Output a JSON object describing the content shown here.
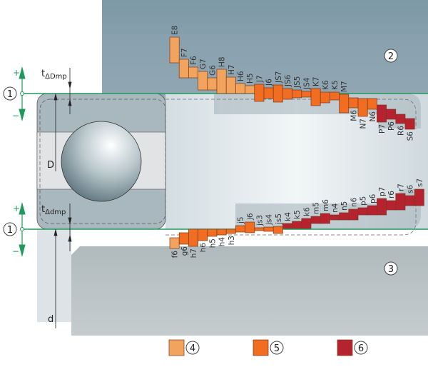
{
  "colors": {
    "class4": "#f2a45e",
    "class5": "#f06d22",
    "class6": "#b6222f",
    "zero_line": "#1f9a5a"
  },
  "markers": {
    "one": "1",
    "two": "2",
    "three": "3",
    "plus": "+",
    "minus": "−"
  },
  "dimensions": {
    "t_outer": "t",
    "t_outer_sub": "ΔDmp",
    "t_inner": "t",
    "t_inner_sub": "Δdmp",
    "D": "D",
    "d": "d"
  },
  "legend": [
    {
      "class": "class4",
      "label": "4"
    },
    {
      "class": "class5",
      "label": "5"
    },
    {
      "class": "class6",
      "label": "6"
    }
  ],
  "housing_tolerances": [
    {
      "name": "E8",
      "upper": 79,
      "lower": 43,
      "class": "class4"
    },
    {
      "name": "F7",
      "upper": 48,
      "lower": 22,
      "class": "class4"
    },
    {
      "name": "F6",
      "upper": 37,
      "lower": 22,
      "class": "class4"
    },
    {
      "name": "G7",
      "upper": 31,
      "lower": 5,
      "class": "class4"
    },
    {
      "name": "G6",
      "upper": 22,
      "lower": 5,
      "class": "class4"
    },
    {
      "name": "H8",
      "upper": 34,
      "lower": 0,
      "class": "class4"
    },
    {
      "name": "H7",
      "upper": 23,
      "lower": 0,
      "class": "class4"
    },
    {
      "name": "H6",
      "upper": 14,
      "lower": 0,
      "class": "class4"
    },
    {
      "name": "H5",
      "upper": 11,
      "lower": 0,
      "class": "class4"
    },
    {
      "name": "J7",
      "upper": 13,
      "lower": -11,
      "class": "class5"
    },
    {
      "name": "J6",
      "upper": 8,
      "lower": -7,
      "class": "class5"
    },
    {
      "name": "JS7",
      "upper": 12,
      "lower": -12,
      "class": "class5"
    },
    {
      "name": "JS6",
      "upper": 7,
      "lower": -8,
      "class": "class5"
    },
    {
      "name": "JS5",
      "upper": 5,
      "lower": -6,
      "class": "class5"
    },
    {
      "name": "JS4",
      "upper": 3,
      "lower": -5,
      "class": "class5"
    },
    {
      "name": "K7",
      "upper": 7,
      "lower": -17,
      "class": "class5"
    },
    {
      "name": "K6",
      "upper": 2,
      "lower": -13,
      "class": "class5"
    },
    {
      "name": "K5",
      "upper": 2,
      "lower": -9,
      "class": "class5"
    },
    {
      "name": "M7",
      "upper": -1,
      "lower": -27,
      "class": "class5"
    },
    {
      "name": "M6",
      "upper": -6,
      "lower": -20,
      "class": "class5"
    },
    {
      "name": "N7",
      "upper": -7,
      "lower": -32,
      "class": "class5"
    },
    {
      "name": "N6",
      "upper": -7,
      "lower": -22,
      "class": "class5"
    },
    {
      "name": "P7",
      "upper": -16,
      "lower": -40,
      "class": "class6"
    },
    {
      "name": "P6",
      "upper": -22,
      "lower": -36,
      "class": "class6"
    },
    {
      "name": "R6",
      "upper": -29,
      "lower": -42,
      "class": "class6"
    },
    {
      "name": "S6",
      "upper": -35,
      "lower": -50,
      "class": "class6"
    }
  ],
  "shaft_tolerances": [
    {
      "name": "f6",
      "upper": -12,
      "lower": -27,
      "class": "class4"
    },
    {
      "name": "g6",
      "upper": -5,
      "lower": -21,
      "class": "class5"
    },
    {
      "name": "h7",
      "upper": 0,
      "lower": -24,
      "class": "class5"
    },
    {
      "name": "h6",
      "upper": 0,
      "lower": -16,
      "class": "class5"
    },
    {
      "name": "h5",
      "upper": 0,
      "lower": -10,
      "class": "class5"
    },
    {
      "name": "h4",
      "upper": 0,
      "lower": -8,
      "class": "class5"
    },
    {
      "name": "h3",
      "upper": 0,
      "lower": -6,
      "class": "class5"
    },
    {
      "name": "j5",
      "upper": 5,
      "lower": -4,
      "class": "class5"
    },
    {
      "name": "j6",
      "upper": 10,
      "lower": -5,
      "class": "class5"
    },
    {
      "name": "js3",
      "upper": 2,
      "lower": -2,
      "class": "class5"
    },
    {
      "name": "js4",
      "upper": 3,
      "lower": -3,
      "class": "class5"
    },
    {
      "name": "js5",
      "upper": 4,
      "lower": -6,
      "class": "class5"
    },
    {
      "name": "k4",
      "upper": 8,
      "lower": 1,
      "class": "class6"
    },
    {
      "name": "k5",
      "upper": 11,
      "lower": 1,
      "class": "class6"
    },
    {
      "name": "k6",
      "upper": 15,
      "lower": 1,
      "class": "class6"
    },
    {
      "name": "m5",
      "upper": 18,
      "lower": 8,
      "class": "class6"
    },
    {
      "name": "m6",
      "upper": 22,
      "lower": 8,
      "class": "class6"
    },
    {
      "name": "n4",
      "upper": 20,
      "lower": 13,
      "class": "class6"
    },
    {
      "name": "n5",
      "upper": 23,
      "lower": 13,
      "class": "class6"
    },
    {
      "name": "n6",
      "upper": 28,
      "lower": 13,
      "class": "class6"
    },
    {
      "name": "p5",
      "upper": 30,
      "lower": 20,
      "class": "class6"
    },
    {
      "name": "p6",
      "upper": 33,
      "lower": 20,
      "class": "class6"
    },
    {
      "name": "p7",
      "upper": 43,
      "lower": 20,
      "class": "class6"
    },
    {
      "name": "r6",
      "upper": 40,
      "lower": 27,
      "class": "class6"
    },
    {
      "name": "r7",
      "upper": 50,
      "lower": 27,
      "class": "class6"
    },
    {
      "name": "s6",
      "upper": 47,
      "lower": 33,
      "class": "class6"
    },
    {
      "name": "s7",
      "upper": 56,
      "lower": 33,
      "class": "class6"
    }
  ]
}
